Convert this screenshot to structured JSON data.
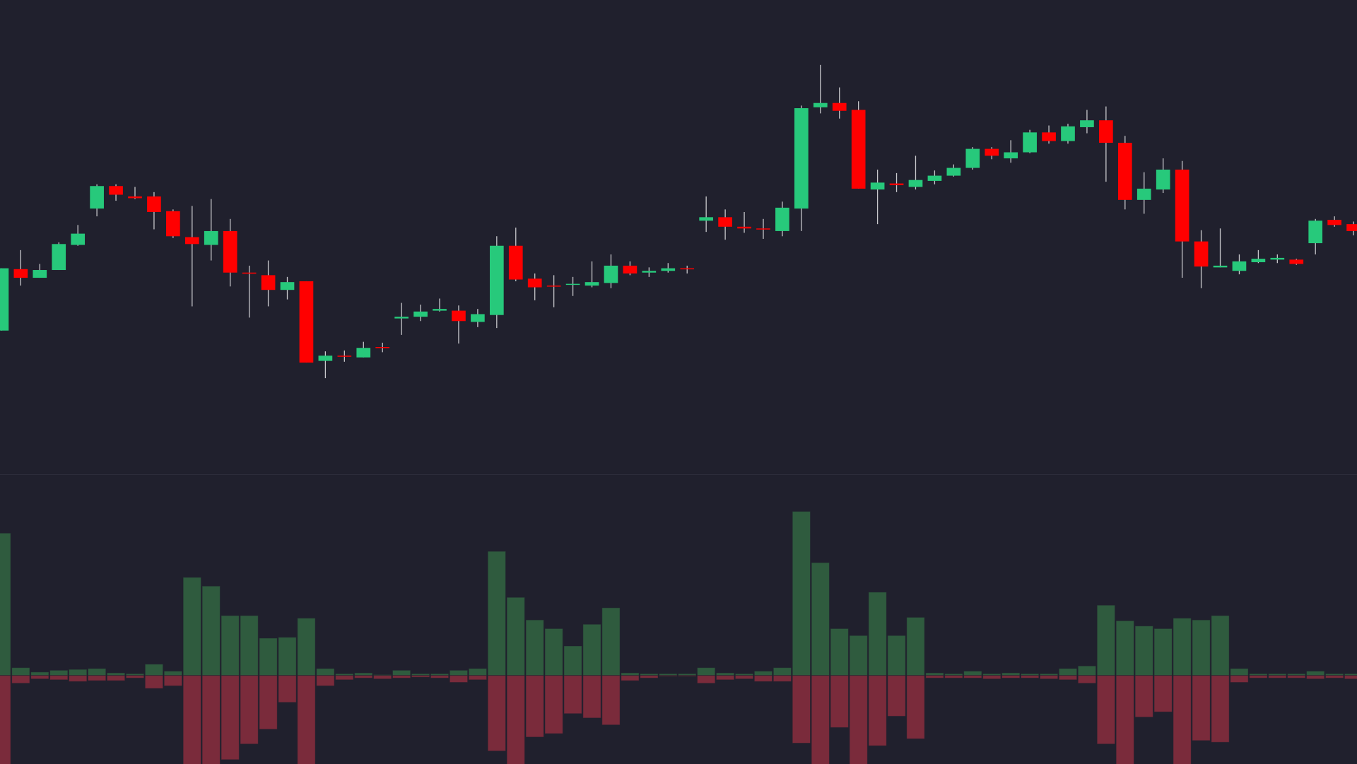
{
  "chart_data": [
    {
      "type": "candlestick",
      "categories": [
        null,
        null,
        null,
        null,
        null,
        null,
        null,
        null,
        null,
        null,
        null,
        null,
        null,
        null,
        null,
        null,
        null,
        null,
        null,
        null,
        null,
        null,
        null,
        null,
        null,
        null,
        null,
        null,
        null,
        null,
        null,
        null,
        null,
        null,
        null,
        null,
        null,
        null,
        null,
        null,
        null,
        null,
        null,
        null,
        null,
        null,
        null,
        null,
        null,
        null,
        null,
        null,
        null,
        null,
        null,
        null,
        null,
        null,
        null,
        null,
        null,
        null,
        null,
        null,
        null,
        null,
        null,
        null,
        null,
        null,
        null,
        null
      ],
      "open": [
        166,
        237,
        227,
        236,
        265,
        307,
        333,
        321,
        321,
        304,
        274,
        265,
        281,
        233,
        230,
        213,
        223,
        131,
        137,
        135,
        147,
        180,
        182,
        189,
        189,
        176,
        184,
        264,
        226,
        218,
        219,
        218,
        221,
        241,
        233,
        235,
        238,
        293,
        297,
        286,
        284,
        281,
        307,
        424,
        429,
        421,
        329,
        336,
        332,
        339,
        345,
        354,
        376,
        365,
        372,
        395,
        385,
        401,
        409,
        383,
        317,
        329,
        352,
        269,
        239,
        235,
        245,
        248,
        248,
        267,
        294,
        289
      ],
      "high": [
        238,
        259,
        243,
        268,
        288,
        335,
        335,
        332,
        326,
        306,
        310,
        318,
        295,
        241,
        247,
        228,
        223,
        142,
        143,
        153,
        152,
        198,
        196,
        203,
        195,
        191,
        275,
        285,
        232,
        230,
        228,
        246,
        254,
        246,
        239,
        244,
        241,
        321,
        306,
        303,
        295,
        315,
        426,
        473,
        447,
        431,
        352,
        348,
        368,
        351,
        358,
        378,
        378,
        386,
        398,
        403,
        405,
        421,
        425,
        391,
        349,
        365,
        362,
        282,
        284,
        254,
        259,
        254,
        249,
        295,
        298,
        292
      ],
      "low": [
        166,
        218,
        227,
        236,
        264,
        298,
        316,
        318,
        283,
        273,
        194,
        247,
        217,
        181,
        194,
        202,
        129,
        111,
        130,
        135,
        141,
        161,
        177,
        188,
        151,
        170,
        169,
        223,
        201,
        193,
        206,
        216,
        215,
        230,
        228,
        233,
        232,
        280,
        271,
        279,
        272,
        275,
        281,
        417,
        411,
        330,
        289,
        326,
        329,
        335,
        344,
        352,
        364,
        360,
        371,
        382,
        382,
        394,
        338,
        306,
        301,
        325,
        227,
        215,
        239,
        231,
        244,
        244,
        242,
        254,
        286,
        276
      ],
      "close": [
        238,
        227,
        236,
        266,
        278,
        333,
        323,
        319,
        303,
        275,
        266,
        281,
        233,
        232,
        213,
        222,
        129,
        137,
        136,
        146,
        146,
        182,
        188,
        191,
        177,
        185,
        264,
        225,
        216,
        217,
        220,
        222,
        241,
        232,
        235,
        238,
        237,
        297,
        286,
        284,
        283,
        308,
        423,
        429,
        420,
        330,
        337,
        334,
        340,
        345,
        354,
        376,
        368,
        372,
        395,
        385,
        402,
        409,
        383,
        317,
        330,
        352,
        269,
        240,
        241,
        246,
        249,
        250,
        243,
        293,
        288,
        281
      ],
      "up_color": "#27c97b",
      "down_color": "#ff0000",
      "wick_color": "#c8c8cc",
      "ylim": [
        0,
        548
      ]
    },
    {
      "type": "bar",
      "series": [
        {
          "color": "#2f5b3e",
          "values": [
            164,
            9,
            4,
            6,
            7,
            8,
            3,
            2,
            13,
            5,
            113,
            103,
            69,
            69,
            43,
            44,
            66,
            8,
            2,
            3,
            1,
            6,
            2,
            2,
            6,
            8,
            143,
            90,
            64,
            54,
            34,
            59,
            78,
            3,
            2,
            2,
            2,
            9,
            3,
            2,
            5,
            9,
            189,
            130,
            54,
            46,
            96,
            46,
            67,
            3,
            2,
            5,
            2,
            3,
            2,
            2,
            8,
            11,
            81,
            63,
            57,
            54,
            66,
            64,
            69,
            8,
            2,
            2,
            2,
            5,
            2,
            2
          ]
        },
        {
          "color": "#7a2b3b",
          "values": [
            -110,
            -9,
            -4,
            -5,
            -7,
            -6,
            -6,
            -3,
            -15,
            -12,
            -110,
            -110,
            -97,
            -79,
            -62,
            -31,
            -110,
            -12,
            -5,
            -3,
            -4,
            -3,
            -2,
            -3,
            -8,
            -5,
            -87,
            -110,
            -71,
            -67,
            -44,
            -49,
            -57,
            -6,
            -3,
            -1,
            -1,
            -9,
            -5,
            -4,
            -7,
            -7,
            -78,
            -110,
            -60,
            -110,
            -81,
            -47,
            -73,
            -3,
            -3,
            -3,
            -4,
            -3,
            -3,
            -4,
            -5,
            -9,
            -79,
            -110,
            -48,
            -42,
            -110,
            -75,
            -77,
            -8,
            -3,
            -3,
            -3,
            -4,
            -3,
            -4
          ]
        }
      ],
      "ylim": [
        -102,
        231
      ]
    }
  ]
}
